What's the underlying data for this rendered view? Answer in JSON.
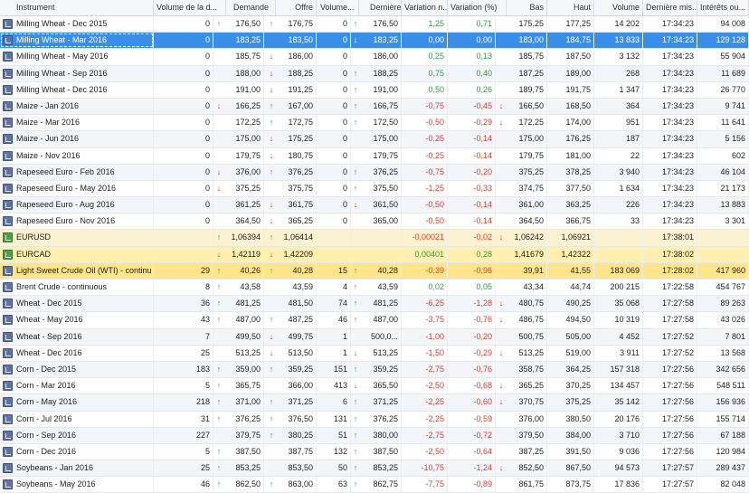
{
  "columns": {
    "instrument": "Instrument",
    "volume_jour": "Volume de la d...",
    "demande": "Demande",
    "offre": "Offre",
    "volume_offre": "Volume...",
    "derniere": "Dernière o...",
    "variation_nette": "Variation n...",
    "variation_pct": "Variation (%)",
    "bas": "Bas",
    "haut": "Haut",
    "volume": "Volume",
    "derniere_maj": "Dernière mis...",
    "interets": "Intérêts ou..."
  },
  "arrow_symbols": {
    "up": "↑",
    "down": "↓"
  },
  "rows": [
    {
      "icon": "commodity-icon",
      "name": "Milling Wheat - Dec 2015",
      "vol_jour": "0",
      "vj_arrow": "up",
      "demande": "176,50",
      "d_arrow": "up",
      "offre": "176,75",
      "vol_offre": "0",
      "vo_arrow": "up",
      "derniere": "176,50",
      "var_net": "1,25",
      "vn_sign": "pos",
      "var_pct": "0,71",
      "vp_sign": "pos",
      "vp_arrow": "",
      "bas": "175,25",
      "haut": "177,25",
      "volume": "14 202",
      "maj": "17:34:23",
      "interets": "94 008",
      "style": ""
    },
    {
      "icon": "commodity-icon",
      "name": "Milling Wheat - Mar 2016",
      "vol_jour": "0",
      "vj_arrow": "",
      "demande": "183,25",
      "d_arrow": "",
      "offre": "183,50",
      "vol_offre": "0",
      "vo_arrow": "down",
      "derniere": "183,25",
      "var_net": "0,00",
      "vn_sign": "",
      "var_pct": "0,00",
      "vp_sign": "",
      "vp_arrow": "",
      "bas": "183,00",
      "haut": "184,75",
      "volume": "13 833",
      "maj": "17:34:23",
      "interets": "129 128",
      "style": "sel"
    },
    {
      "icon": "commodity-icon",
      "name": "Milling Wheat - May 2016",
      "vol_jour": "0",
      "vj_arrow": "",
      "demande": "185,75",
      "d_arrow": "down",
      "offre": "186,00",
      "vol_offre": "0",
      "vo_arrow": "",
      "derniere": "186,00",
      "var_net": "0,25",
      "vn_sign": "pos",
      "var_pct": "0,13",
      "vp_sign": "pos",
      "vp_arrow": "",
      "bas": "185,75",
      "haut": "187,50",
      "volume": "3 132",
      "maj": "17:34:23",
      "interets": "55 904",
      "style": ""
    },
    {
      "icon": "commodity-icon",
      "name": "Milling Wheat - Sep 2016",
      "vol_jour": "0",
      "vj_arrow": "",
      "demande": "188,00",
      "d_arrow": "down",
      "offre": "188,25",
      "vol_offre": "0",
      "vo_arrow": "up",
      "derniere": "188,25",
      "var_net": "0,75",
      "vn_sign": "pos",
      "var_pct": "0,40",
      "vp_sign": "pos",
      "vp_arrow": "",
      "bas": "187,25",
      "haut": "189,00",
      "volume": "268",
      "maj": "17:34:23",
      "interets": "11 689",
      "style": ""
    },
    {
      "icon": "commodity-icon",
      "name": "Milling Wheat - Dec 2016",
      "vol_jour": "0",
      "vj_arrow": "",
      "demande": "191,00",
      "d_arrow": "down",
      "offre": "191,25",
      "vol_offre": "0",
      "vo_arrow": "up",
      "derniere": "191,00",
      "var_net": "0,50",
      "vn_sign": "pos",
      "var_pct": "0,26",
      "vp_sign": "pos",
      "vp_arrow": "",
      "bas": "189,75",
      "haut": "191,75",
      "volume": "1 347",
      "maj": "17:34:23",
      "interets": "26 770",
      "style": ""
    },
    {
      "icon": "commodity-icon",
      "name": "Maize - Jan 2016",
      "vol_jour": "0",
      "vj_arrow": "down",
      "demande": "166,25",
      "d_arrow": "up",
      "offre": "167,00",
      "vol_offre": "0",
      "vo_arrow": "up",
      "derniere": "166,75",
      "var_net": "-0,75",
      "vn_sign": "neg",
      "var_pct": "-0,45",
      "vp_sign": "neg",
      "vp_arrow": "down",
      "bas": "166,50",
      "haut": "168,50",
      "volume": "364",
      "maj": "17:34:23",
      "interets": "9 741",
      "style": ""
    },
    {
      "icon": "commodity-icon",
      "name": "Maize - Mar 2016",
      "vol_jour": "0",
      "vj_arrow": "",
      "demande": "172,25",
      "d_arrow": "up",
      "offre": "172,75",
      "vol_offre": "0",
      "vo_arrow": "up",
      "derniere": "172,50",
      "var_net": "-0,50",
      "vn_sign": "neg",
      "var_pct": "-0,29",
      "vp_sign": "neg",
      "vp_arrow": "down",
      "bas": "172,25",
      "haut": "174,00",
      "volume": "951",
      "maj": "17:34:23",
      "interets": "11 641",
      "style": ""
    },
    {
      "icon": "commodity-icon",
      "name": "Maize - Jun 2016",
      "vol_jour": "0",
      "vj_arrow": "",
      "demande": "175,00",
      "d_arrow": "down",
      "offre": "175,25",
      "vol_offre": "0",
      "vo_arrow": "",
      "derniere": "175,00",
      "var_net": "-0,25",
      "vn_sign": "neg",
      "var_pct": "-0,14",
      "vp_sign": "neg",
      "vp_arrow": "",
      "bas": "175,00",
      "haut": "176,25",
      "volume": "187",
      "maj": "17:34:23",
      "interets": "5 156",
      "style": ""
    },
    {
      "icon": "commodity-icon",
      "name": "Maize - Nov 2016",
      "vol_jour": "0",
      "vj_arrow": "",
      "demande": "179,75",
      "d_arrow": "down",
      "offre": "180,75",
      "vol_offre": "0",
      "vo_arrow": "",
      "derniere": "179,75",
      "var_net": "-0,25",
      "vn_sign": "neg",
      "var_pct": "-0,14",
      "vp_sign": "neg",
      "vp_arrow": "",
      "bas": "179,75",
      "haut": "181,00",
      "volume": "22",
      "maj": "17:34:23",
      "interets": "602",
      "style": ""
    },
    {
      "icon": "commodity-icon",
      "name": "Rapeseed Euro - Feb 2016",
      "vol_jour": "0",
      "vj_arrow": "down",
      "demande": "376,00",
      "d_arrow": "up",
      "offre": "376,25",
      "vol_offre": "0",
      "vo_arrow": "up",
      "derniere": "376,25",
      "var_net": "-0,75",
      "vn_sign": "neg",
      "var_pct": "-0,20",
      "vp_sign": "neg",
      "vp_arrow": "",
      "bas": "375,25",
      "haut": "378,25",
      "volume": "3 940",
      "maj": "17:34:23",
      "interets": "46 104",
      "style": ""
    },
    {
      "icon": "commodity-icon",
      "name": "Rapeseed Euro - May 2016",
      "vol_jour": "0",
      "vj_arrow": "down",
      "demande": "375,25",
      "d_arrow": "",
      "offre": "375,75",
      "vol_offre": "0",
      "vo_arrow": "up",
      "derniere": "375,50",
      "var_net": "-1,25",
      "vn_sign": "neg",
      "var_pct": "-0,33",
      "vp_sign": "neg",
      "vp_arrow": "",
      "bas": "374,75",
      "haut": "377,50",
      "volume": "1 634",
      "maj": "17:34:23",
      "interets": "21 173",
      "style": ""
    },
    {
      "icon": "commodity-icon",
      "name": "Rapeseed Euro - Aug 2016",
      "vol_jour": "0",
      "vj_arrow": "",
      "demande": "361,25",
      "d_arrow": "down",
      "offre": "361,75",
      "vol_offre": "0",
      "vo_arrow": "down",
      "derniere": "361,50",
      "var_net": "-0,50",
      "vn_sign": "neg",
      "var_pct": "-0,14",
      "vp_sign": "neg",
      "vp_arrow": "",
      "bas": "361,00",
      "haut": "363,25",
      "volume": "226",
      "maj": "17:34:23",
      "interets": "13 883",
      "style": ""
    },
    {
      "icon": "commodity-icon",
      "name": "Rapeseed Euro - Nov 2016",
      "vol_jour": "0",
      "vj_arrow": "",
      "demande": "364,50",
      "d_arrow": "down",
      "offre": "365,25",
      "vol_offre": "0",
      "vo_arrow": "",
      "derniere": "365,00",
      "var_net": "-0,50",
      "vn_sign": "neg",
      "var_pct": "-0,14",
      "vp_sign": "neg",
      "vp_arrow": "",
      "bas": "364,50",
      "haut": "366,75",
      "volume": "33",
      "maj": "17:34:23",
      "interets": "3 301",
      "style": ""
    },
    {
      "icon": "forex-icon",
      "name": "EURUSD",
      "vol_jour": "",
      "vj_arrow": "up",
      "demande": "1,06394",
      "d_arrow": "up",
      "offre": "1,06414",
      "vol_offre": "",
      "vo_arrow": "",
      "derniere": "",
      "var_net": "-0,00021",
      "vn_sign": "neg",
      "var_pct": "-0,02",
      "vp_sign": "neg",
      "vp_arrow": "down",
      "bas": "1,06242",
      "haut": "1,06921",
      "volume": "",
      "maj": "17:38:01",
      "interets": "",
      "style": "hl-c"
    },
    {
      "icon": "forex-icon",
      "name": "EURCAD",
      "vol_jour": "",
      "vj_arrow": "down",
      "demande": "1,42119",
      "d_arrow": "down",
      "offre": "1,42209",
      "vol_offre": "",
      "vo_arrow": "",
      "derniere": "",
      "var_net": "0,00401",
      "vn_sign": "pos",
      "var_pct": "0,28",
      "vp_sign": "pos",
      "vp_arrow": "",
      "bas": "1,41679",
      "haut": "1,42322",
      "volume": "",
      "maj": "17:38:02",
      "interets": "",
      "style": "hl-y"
    },
    {
      "icon": "commodity-icon",
      "name": "Light Sweet Crude Oil (WTI) - continuous",
      "vol_jour": "29",
      "vj_arrow": "up",
      "demande": "40,26",
      "d_arrow": "up",
      "offre": "40,28",
      "vol_offre": "15",
      "vo_arrow": "up",
      "derniere": "40,28",
      "var_net": "-0,39",
      "vn_sign": "neg",
      "var_pct": "-0,96",
      "vp_sign": "neg",
      "vp_arrow": "",
      "bas": "39,91",
      "haut": "41,55",
      "volume": "183 069",
      "maj": "17:28:02",
      "interets": "417 960",
      "style": "hl-y2"
    },
    {
      "icon": "commodity-icon",
      "name": "Brent Crude - continuous",
      "vol_jour": "8",
      "vj_arrow": "up",
      "demande": "43,58",
      "d_arrow": "",
      "offre": "43,59",
      "vol_offre": "4",
      "vo_arrow": "up",
      "derniere": "43,59",
      "var_net": "0,02",
      "vn_sign": "pos",
      "var_pct": "0,05",
      "vp_sign": "pos",
      "vp_arrow": "",
      "bas": "43,34",
      "haut": "44,74",
      "volume": "200 215",
      "maj": "17:22:58",
      "interets": "454 767",
      "style": ""
    },
    {
      "icon": "commodity-icon",
      "name": "Wheat - Dec 2015",
      "vol_jour": "36",
      "vj_arrow": "up",
      "demande": "481,25",
      "d_arrow": "",
      "offre": "481,50",
      "vol_offre": "74",
      "vo_arrow": "up",
      "derniere": "481,25",
      "var_net": "-6,25",
      "vn_sign": "neg",
      "var_pct": "-1,28",
      "vp_sign": "neg",
      "vp_arrow": "down",
      "bas": "480,75",
      "haut": "490,25",
      "volume": "35 068",
      "maj": "17:27:58",
      "interets": "89 263",
      "style": ""
    },
    {
      "icon": "commodity-icon",
      "name": "Wheat - May 2016",
      "vol_jour": "43",
      "vj_arrow": "up",
      "demande": "487,00",
      "d_arrow": "up",
      "offre": "487,25",
      "vol_offre": "46",
      "vo_arrow": "up",
      "derniere": "487,00",
      "var_net": "-3,75",
      "vn_sign": "neg",
      "var_pct": "-0,76",
      "vp_sign": "neg",
      "vp_arrow": "down",
      "bas": "486,75",
      "haut": "494,50",
      "volume": "10 319",
      "maj": "17:27:58",
      "interets": "43 026",
      "style": ""
    },
    {
      "icon": "commodity-icon",
      "name": "Wheat - Sep 2016",
      "vol_jour": "7",
      "vj_arrow": "",
      "demande": "499,50",
      "d_arrow": "down",
      "offre": "499,75",
      "vol_offre": "1",
      "vo_arrow": "",
      "derniere": "500,0...",
      "var_net": "-1,00",
      "vn_sign": "neg",
      "var_pct": "-0,20",
      "vp_sign": "neg",
      "vp_arrow": "",
      "bas": "500,75",
      "haut": "505,00",
      "volume": "4 452",
      "maj": "17:27:52",
      "interets": "7 801",
      "style": ""
    },
    {
      "icon": "commodity-icon",
      "name": "Wheat - Dec 2016",
      "vol_jour": "25",
      "vj_arrow": "",
      "demande": "513,25",
      "d_arrow": "down",
      "offre": "513,50",
      "vol_offre": "1",
      "vo_arrow": "down",
      "derniere": "513,25",
      "var_net": "-1,50",
      "vn_sign": "neg",
      "var_pct": "-0,29",
      "vp_sign": "neg",
      "vp_arrow": "down",
      "bas": "513,25",
      "haut": "519,00",
      "volume": "3 911",
      "maj": "17:27:52",
      "interets": "13 568",
      "style": ""
    },
    {
      "icon": "commodity-icon",
      "name": "Corn - Dec 2015",
      "vol_jour": "183",
      "vj_arrow": "up",
      "demande": "359,00",
      "d_arrow": "up",
      "offre": "359,25",
      "vol_offre": "151",
      "vo_arrow": "up",
      "derniere": "359,25",
      "var_net": "-2,75",
      "vn_sign": "neg",
      "var_pct": "-0,76",
      "vp_sign": "neg",
      "vp_arrow": "",
      "bas": "358,75",
      "haut": "364,25",
      "volume": "157 318",
      "maj": "17:27:56",
      "interets": "342 656",
      "style": ""
    },
    {
      "icon": "commodity-icon",
      "name": "Corn - Mar 2016",
      "vol_jour": "5",
      "vj_arrow": "up",
      "demande": "365,75",
      "d_arrow": "",
      "offre": "366,00",
      "vol_offre": "413",
      "vo_arrow": "down",
      "derniere": "365,50",
      "var_net": "-2,50",
      "vn_sign": "neg",
      "var_pct": "-0,68",
      "vp_sign": "neg",
      "vp_arrow": "down",
      "bas": "365,25",
      "haut": "370,25",
      "volume": "134 457",
      "maj": "17:27:56",
      "interets": "548 511",
      "style": ""
    },
    {
      "icon": "commodity-icon",
      "name": "Corn - May 2016",
      "vol_jour": "218",
      "vj_arrow": "up",
      "demande": "371,00",
      "d_arrow": "up",
      "offre": "371,25",
      "vol_offre": "6",
      "vo_arrow": "up",
      "derniere": "371,25",
      "var_net": "-2,25",
      "vn_sign": "neg",
      "var_pct": "-0,60",
      "vp_sign": "neg",
      "vp_arrow": "down",
      "bas": "370,75",
      "haut": "375,25",
      "volume": "35 142",
      "maj": "17:27:56",
      "interets": "156 936",
      "style": ""
    },
    {
      "icon": "commodity-icon",
      "name": "Corn - Jul 2016",
      "vol_jour": "31",
      "vj_arrow": "up",
      "demande": "376,25",
      "d_arrow": "up",
      "offre": "376,50",
      "vol_offre": "131",
      "vo_arrow": "up",
      "derniere": "376,25",
      "var_net": "-2,25",
      "vn_sign": "neg",
      "var_pct": "-0,59",
      "vp_sign": "neg",
      "vp_arrow": "",
      "bas": "376,00",
      "haut": "380,50",
      "volume": "20 176",
      "maj": "17:27:56",
      "interets": "155 714",
      "style": ""
    },
    {
      "icon": "commodity-icon",
      "name": "Corn - Sep 2016",
      "vol_jour": "227",
      "vj_arrow": "",
      "demande": "379,75",
      "d_arrow": "up",
      "offre": "380,25",
      "vol_offre": "51",
      "vo_arrow": "up",
      "derniere": "380,00",
      "var_net": "-2,75",
      "vn_sign": "neg",
      "var_pct": "-0,72",
      "vp_sign": "neg",
      "vp_arrow": "",
      "bas": "379,50",
      "haut": "384,00",
      "volume": "3 710",
      "maj": "17:27:56",
      "interets": "67 188",
      "style": ""
    },
    {
      "icon": "commodity-icon",
      "name": "Corn - Dec 2016",
      "vol_jour": "5",
      "vj_arrow": "up",
      "demande": "387,50",
      "d_arrow": "",
      "offre": "387,75",
      "vol_offre": "132",
      "vo_arrow": "up",
      "derniere": "387,50",
      "var_net": "-2,50",
      "vn_sign": "neg",
      "var_pct": "-0,64",
      "vp_sign": "neg",
      "vp_arrow": "",
      "bas": "387,25",
      "haut": "391,50",
      "volume": "9 036",
      "maj": "17:27:56",
      "interets": "120 984",
      "style": ""
    },
    {
      "icon": "commodity-icon",
      "name": "Soybeans - Jan 2016",
      "vol_jour": "25",
      "vj_arrow": "up",
      "demande": "853,25",
      "d_arrow": "",
      "offre": "853,50",
      "vol_offre": "50",
      "vo_arrow": "up",
      "derniere": "853,25",
      "var_net": "-10,75",
      "vn_sign": "neg",
      "var_pct": "-1,24",
      "vp_sign": "neg",
      "vp_arrow": "down",
      "bas": "852,50",
      "haut": "867,50",
      "volume": "94 573",
      "maj": "17:27:57",
      "interets": "289 437",
      "style": ""
    },
    {
      "icon": "commodity-icon",
      "name": "Soybeans - May 2016",
      "vol_jour": "46",
      "vj_arrow": "up",
      "demande": "862,50",
      "d_arrow": "up",
      "offre": "863,00",
      "vol_offre": "63",
      "vo_arrow": "up",
      "derniere": "862,75",
      "var_net": "-7,75",
      "vn_sign": "neg",
      "var_pct": "-0,89",
      "vp_sign": "neg",
      "vp_arrow": "",
      "bas": "861,75",
      "haut": "873,75",
      "volume": "17 836",
      "maj": "17:27:57",
      "interets": "82 048",
      "style": ""
    }
  ]
}
